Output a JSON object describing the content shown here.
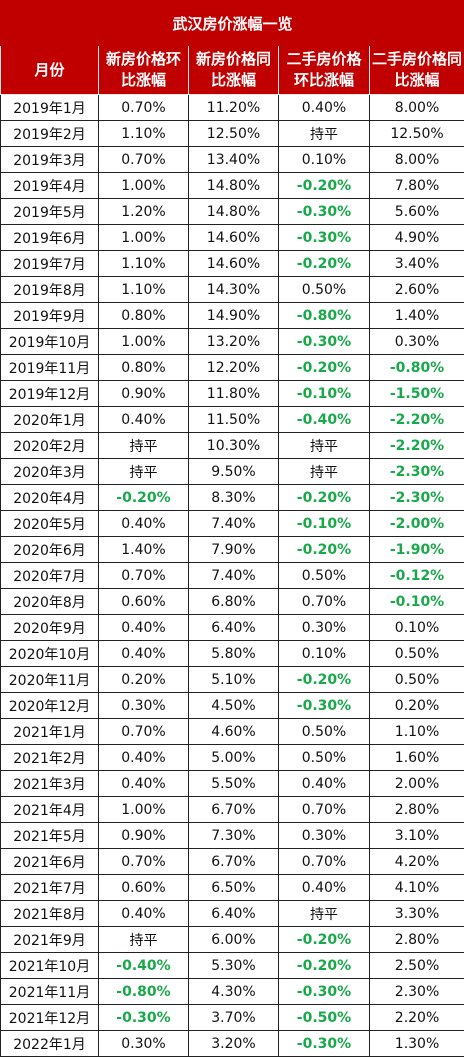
{
  "title": "武汉房价涨幅一览",
  "headers": [
    "月份",
    "新房价格环比涨幅",
    "新房价格同比涨幅",
    "二手房价格环比涨幅",
    "二手房价格同比涨幅"
  ],
  "colors": {
    "header_bg": "#c00000",
    "negative": "#19a84a"
  },
  "rows": [
    [
      "2019年1月",
      "0.70%",
      "11.20%",
      "0.40%",
      "8.00%"
    ],
    [
      "2019年2月",
      "1.10%",
      "12.50%",
      "持平",
      "12.50%"
    ],
    [
      "2019年3月",
      "0.70%",
      "13.40%",
      "0.10%",
      "8.00%"
    ],
    [
      "2019年4月",
      "1.00%",
      "14.80%",
      "-0.20%",
      "7.80%"
    ],
    [
      "2019年5月",
      "1.20%",
      "14.80%",
      "-0.30%",
      "5.60%"
    ],
    [
      "2019年6月",
      "1.00%",
      "14.60%",
      "-0.30%",
      "4.90%"
    ],
    [
      "2019年7月",
      "1.10%",
      "14.60%",
      "-0.20%",
      "3.40%"
    ],
    [
      "2019年8月",
      "1.10%",
      "14.30%",
      "0.50%",
      "2.60%"
    ],
    [
      "2019年9月",
      "0.80%",
      "14.90%",
      "-0.80%",
      "1.40%"
    ],
    [
      "2019年10月",
      "1.00%",
      "13.20%",
      "-0.30%",
      "0.30%"
    ],
    [
      "2019年11月",
      "0.80%",
      "12.20%",
      "-0.20%",
      "-0.80%"
    ],
    [
      "2019年12月",
      "0.90%",
      "11.80%",
      "-0.10%",
      "-1.50%"
    ],
    [
      "2020年1月",
      "0.40%",
      "11.50%",
      "-0.40%",
      "-2.20%"
    ],
    [
      "2020年2月",
      "持平",
      "10.30%",
      "持平",
      "-2.20%"
    ],
    [
      "2020年3月",
      "持平",
      "9.50%",
      "持平",
      "-2.30%"
    ],
    [
      "2020年4月",
      "-0.20%",
      "8.30%",
      "-0.20%",
      "-2.30%"
    ],
    [
      "2020年5月",
      "0.40%",
      "7.40%",
      "-0.10%",
      "-2.00%"
    ],
    [
      "2020年6月",
      "1.40%",
      "7.90%",
      "-0.20%",
      "-1.90%"
    ],
    [
      "2020年7月",
      "0.70%",
      "7.40%",
      "0.50%",
      "-0.12%"
    ],
    [
      "2020年8月",
      "0.60%",
      "6.80%",
      "0.70%",
      "-0.10%"
    ],
    [
      "2020年9月",
      "0.40%",
      "6.40%",
      "0.30%",
      "0.10%"
    ],
    [
      "2020年10月",
      "0.40%",
      "5.80%",
      "0.10%",
      "0.50%"
    ],
    [
      "2020年11月",
      "0.20%",
      "5.10%",
      "-0.20%",
      "0.50%"
    ],
    [
      "2020年12月",
      "0.30%",
      "4.50%",
      "-0.30%",
      "0.20%"
    ],
    [
      "2021年1月",
      "0.70%",
      "4.60%",
      "0.50%",
      "1.10%"
    ],
    [
      "2021年2月",
      "0.40%",
      "5.00%",
      "0.50%",
      "1.60%"
    ],
    [
      "2021年3月",
      "0.40%",
      "5.50%",
      "0.40%",
      "2.00%"
    ],
    [
      "2021年4月",
      "1.00%",
      "6.70%",
      "0.70%",
      "2.80%"
    ],
    [
      "2021年5月",
      "0.90%",
      "7.30%",
      "0.30%",
      "3.10%"
    ],
    [
      "2021年6月",
      "0.70%",
      "6.70%",
      "0.70%",
      "4.20%"
    ],
    [
      "2021年7月",
      "0.60%",
      "6.50%",
      "0.40%",
      "4.10%"
    ],
    [
      "2021年8月",
      "0.40%",
      "6.40%",
      "持平",
      "3.30%"
    ],
    [
      "2021年9月",
      "持平",
      "6.00%",
      "-0.20%",
      "2.80%"
    ],
    [
      "2021年10月",
      "-0.40%",
      "5.30%",
      "-0.20%",
      "2.50%"
    ],
    [
      "2021年11月",
      "-0.80%",
      "4.30%",
      "-0.30%",
      "2.30%"
    ],
    [
      "2021年12月",
      "-0.30%",
      "3.70%",
      "-0.50%",
      "2.20%"
    ],
    [
      "2022年1月",
      "0.30%",
      "3.20%",
      "-0.30%",
      "1.30%"
    ]
  ]
}
